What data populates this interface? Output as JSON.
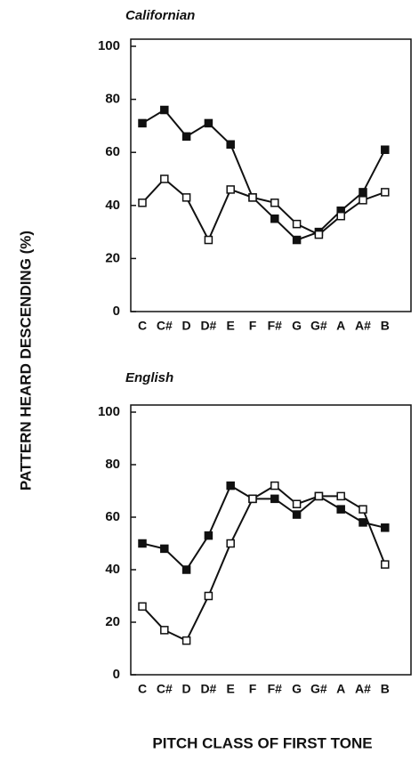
{
  "ylabel": "PATTERN HEARD DESCENDING (%)",
  "xlabel": "PITCH CLASS OF FIRST TONE",
  "chart_data": [
    {
      "type": "line",
      "title": "Californian",
      "categories": [
        "C",
        "C#",
        "D",
        "D#",
        "E",
        "F",
        "F#",
        "G",
        "G#",
        "A",
        "A#",
        "B"
      ],
      "series": [
        {
          "marker": "filled",
          "color": "#111111",
          "values": [
            71,
            76,
            66,
            71,
            63,
            43,
            35,
            27,
            30,
            38,
            45,
            61
          ]
        },
        {
          "marker": "open",
          "color": "#111111",
          "values": [
            41,
            50,
            43,
            27,
            46,
            43,
            41,
            33,
            29,
            36,
            42,
            45
          ]
        }
      ],
      "ylim": [
        0,
        100
      ],
      "yticks": [
        0,
        20,
        40,
        60,
        80,
        100
      ]
    },
    {
      "type": "line",
      "title": "English",
      "categories": [
        "C",
        "C#",
        "D",
        "D#",
        "E",
        "F",
        "F#",
        "G",
        "G#",
        "A",
        "A#",
        "B"
      ],
      "series": [
        {
          "marker": "filled",
          "color": "#111111",
          "values": [
            50,
            48,
            40,
            53,
            72,
            67,
            67,
            61,
            68,
            63,
            58,
            56
          ]
        },
        {
          "marker": "open",
          "color": "#111111",
          "values": [
            26,
            17,
            13,
            30,
            50,
            67,
            72,
            65,
            68,
            68,
            63,
            42
          ]
        }
      ],
      "ylim": [
        0,
        100
      ],
      "yticks": [
        0,
        20,
        40,
        60,
        80,
        100
      ]
    }
  ]
}
